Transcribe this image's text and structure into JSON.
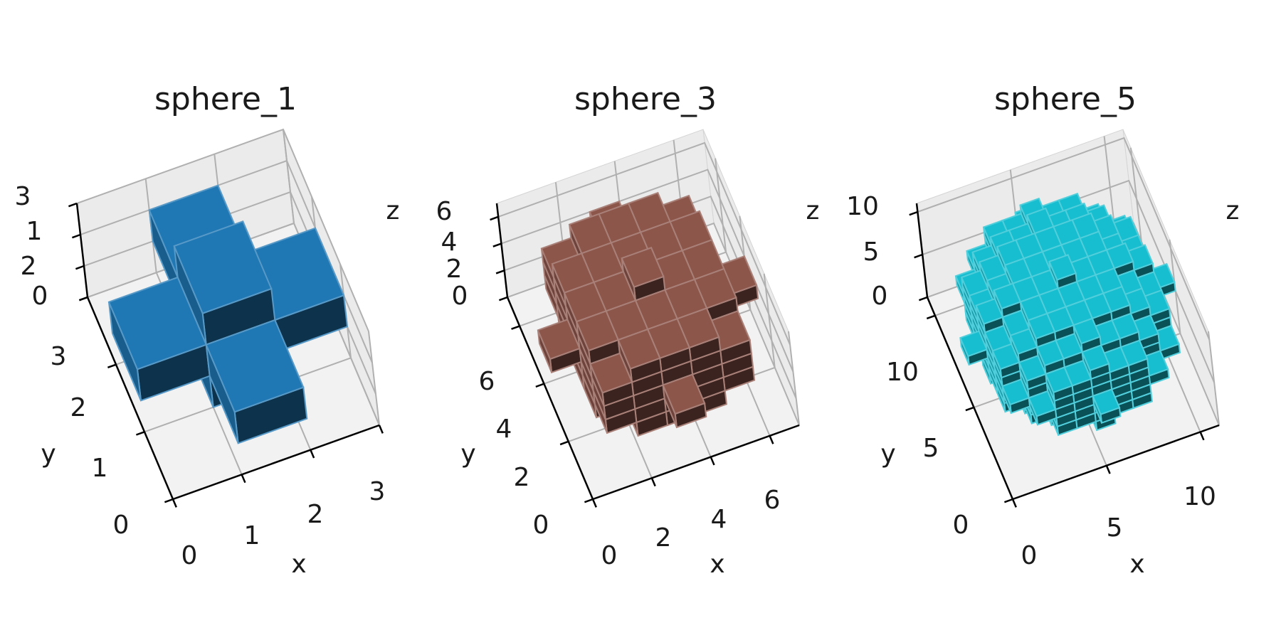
{
  "chart_data": [
    {
      "type": "voxel",
      "title": "sphere_1",
      "xlabel": "x",
      "ylabel": "y",
      "zlabel": "z",
      "x_ticks": [
        "0",
        "1",
        "2",
        "3"
      ],
      "y_ticks": [
        "0",
        "1",
        "2",
        "3"
      ],
      "z_ticks": [
        "0",
        "1",
        "2",
        "3"
      ],
      "grid_size": 3,
      "radius": 1,
      "color": "#1f77b4"
    },
    {
      "type": "voxel",
      "title": "sphere_3",
      "xlabel": "x",
      "ylabel": "y",
      "zlabel": "z",
      "x_ticks": [
        "0",
        "2",
        "4",
        "6"
      ],
      "y_ticks": [
        "0",
        "2",
        "4",
        "6"
      ],
      "z_ticks": [
        "0",
        "2",
        "4",
        "6"
      ],
      "grid_size": 7,
      "radius": 3,
      "color": "#8c564b"
    },
    {
      "type": "voxel",
      "title": "sphere_5",
      "xlabel": "x",
      "ylabel": "y",
      "zlabel": "z",
      "x_ticks": [
        "0",
        "5",
        "10"
      ],
      "y_ticks": [
        "0",
        "5",
        "10"
      ],
      "z_ticks": [
        "0",
        "5",
        "10"
      ],
      "grid_size": 11,
      "radius": 5,
      "color": "#17becf"
    }
  ]
}
